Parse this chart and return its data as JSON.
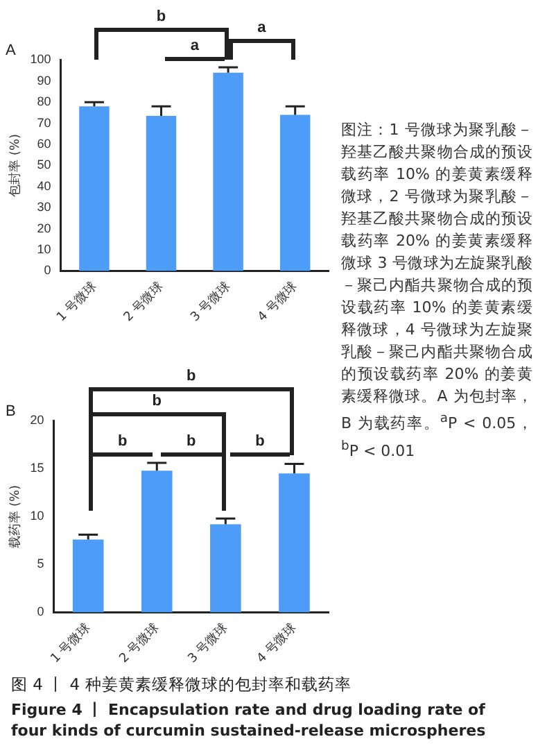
{
  "chart_data": [
    {
      "type": "bar",
      "title": "A",
      "ylabel": "包封率 (%)",
      "categories": [
        "1 号微球",
        "2 号微球",
        "3 号微球",
        "4 号微球"
      ],
      "values": [
        78,
        73.5,
        94,
        74
      ],
      "errors": [
        [
          78,
          80
        ],
        [
          73.5,
          78
        ],
        [
          94,
          96.5
        ],
        [
          74,
          78
        ]
      ],
      "color": "#4d9cf8",
      "ylim": [
        0,
        100
      ],
      "yticks": [
        0,
        10,
        20,
        30,
        40,
        50,
        60,
        70,
        80,
        90,
        100
      ],
      "grid": false,
      "legend": false,
      "annotations": [
        "b",
        "a",
        "a"
      ]
    },
    {
      "type": "bar",
      "title": "B",
      "ylabel": "载药率 (%)",
      "categories": [
        "1 号微球",
        "2 号微球",
        "3 号微球",
        "4 号微球"
      ],
      "values": [
        7.6,
        14.8,
        9.2,
        14.5
      ],
      "errors": [
        [
          7.6,
          8.1
        ],
        [
          14.8,
          15.6
        ],
        [
          9.2,
          9.8
        ],
        [
          14.5,
          15.5
        ]
      ],
      "color": "#4d9cf8",
      "ylim": [
        0,
        20
      ],
      "yticks": [
        0,
        5,
        10,
        15,
        20
      ],
      "grid": false,
      "legend": false,
      "annotations": [
        "b",
        "b",
        "b",
        "b",
        "b"
      ]
    },
    {
      "type": "other",
      "annotations": [
        "图注：1 号微球为聚乳酸－羟基乙酸共聚物合成的预设载药率 10% 的姜黄素缓释微球，2 号微球为聚乳酸－羟基乙酸共聚物合成的预设载药率 20% 的姜黄素缓释微球 3 号微球为左旋聚乳酸－聚己内酯共聚物合成的预设载药率 10% 的姜黄素缓释微球，4 号微球为左旋聚乳酸－聚己内酯共聚物合成的预设载药率 20% 的姜黄素缓释微球。A 为包封率，B 为载药率。$^{a}$P < 0.05，$^{b}$P < 0.01",
        "图 4 丨 4 种姜黄素缓释微球的包封率和载药率",
        "Figure 4 丨 Encapsulation rate and drug loading rate of four kinds of curcumin sustained-release microspheres"
      ]
    }
  ]
}
